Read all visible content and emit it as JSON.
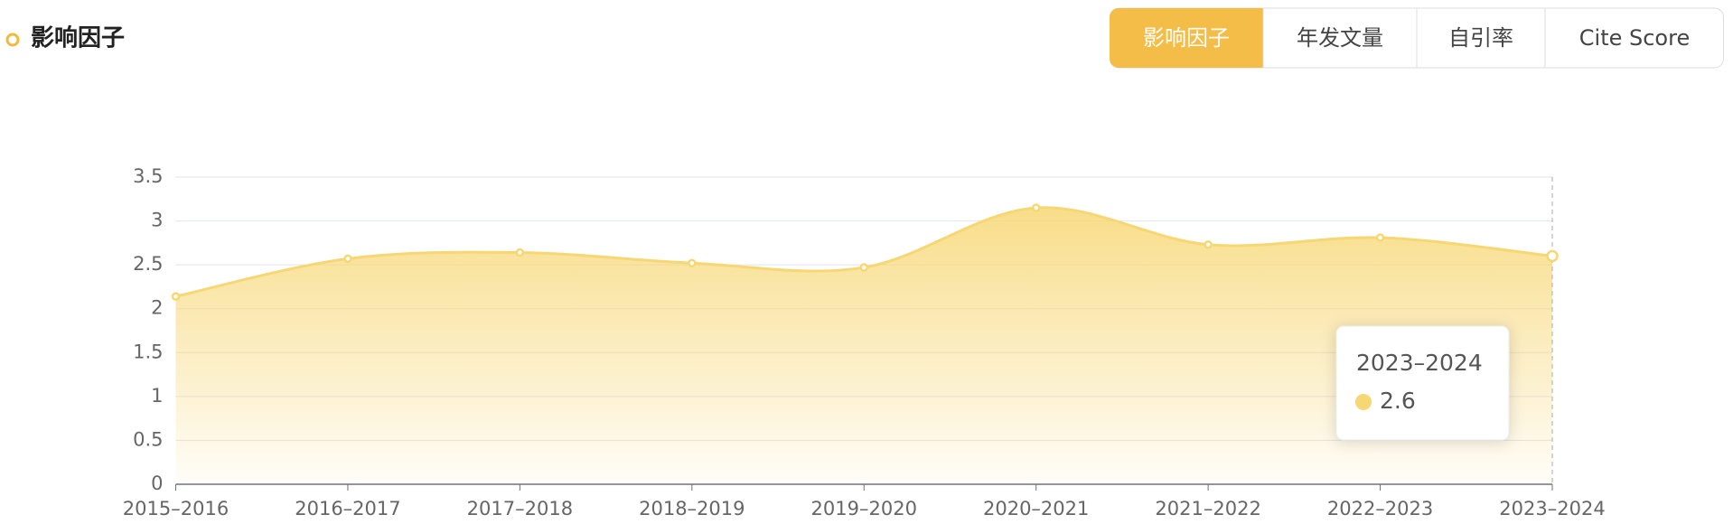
{
  "chart_data": {
    "type": "line",
    "title": "影响因子",
    "tabs": [
      "影响因子",
      "年发文量",
      "自引率",
      "Cite Score"
    ],
    "active_tab": 0,
    "categories": [
      "2015–2016",
      "2016–2017",
      "2017–2018",
      "2018–2019",
      "2019–2020",
      "2020–2021",
      "2021–2022",
      "2022–2023",
      "2023–2024"
    ],
    "series": [
      {
        "name": "影响因子",
        "color": "#f7d774",
        "values": [
          2.14,
          2.57,
          2.64,
          2.52,
          2.47,
          3.15,
          2.73,
          2.81,
          2.6
        ]
      }
    ],
    "ylim": [
      0,
      3.5
    ],
    "yticks": [
      0,
      0.5,
      1,
      1.5,
      2,
      2.5,
      3,
      3.5
    ],
    "grid": true,
    "tooltip_index": 8
  }
}
